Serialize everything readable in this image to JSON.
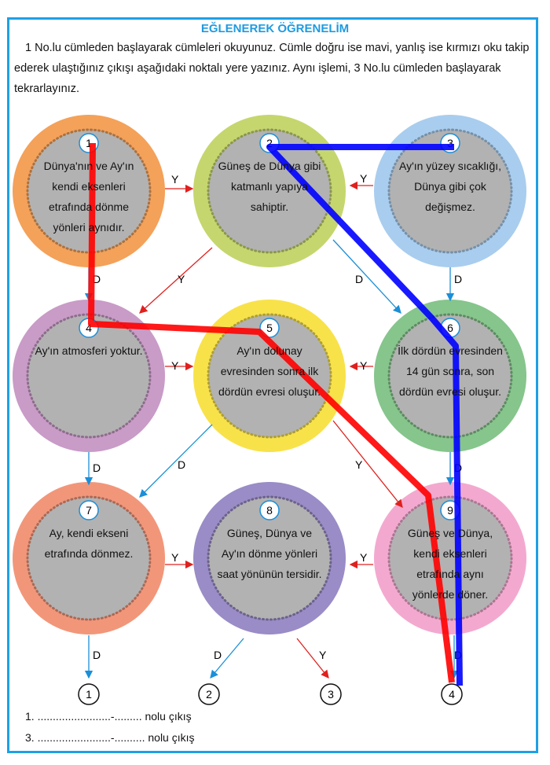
{
  "title": "EĞLENEREK ÖĞRENELİM",
  "instructions": "1 No.lu cümleden başlayarak cümleleri okuyunuz. Cümle doğru ise mavi, yanlış ise kırmızı oku takip ederek ulaştığınız çıkışı aşağıdaki noktalı yere yazınız. Aynı işlemi, 3 No.lu cümleden başlayarak tekrarlayınız.",
  "nodes": [
    {
      "num": "1",
      "text": "Dünya'nın ve Ay'ın kendi eksenleri etrafında dönme yönleri aynıdır.",
      "color": "#f4a15a"
    },
    {
      "num": "2",
      "text": "Güneş de Dünya gibi katmanlı yapıya sahiptir.",
      "color": "#c6d66e"
    },
    {
      "num": "3",
      "text": "Ay'ın yüzey sıcaklığı, Dünya gibi çok değişmez.",
      "color": "#a9cdee"
    },
    {
      "num": "4",
      "text": "Ay'ın atmosferi yoktur.",
      "color": "#c99bc7"
    },
    {
      "num": "5",
      "text": "Ay'ın dolunay evresinden sonra ilk dördün evresi oluşur.",
      "color": "#f8e24a"
    },
    {
      "num": "6",
      "text": "İlk dördün evresinden 14 gün sonra, son dördün evresi oluşur.",
      "color": "#86c58c"
    },
    {
      "num": "7",
      "text": "Ay, kendi ekseni etrafında dönmez.",
      "color": "#f2967a"
    },
    {
      "num": "8",
      "text": "Güneş, Dünya ve Ay'ın dönme yönleri saat yönünün tersidir.",
      "color": "#9a8cc6"
    },
    {
      "num": "9",
      "text": "Güneş ve Dünya, kendi eksenleri etrafında aynı yönlerde döner.",
      "color": "#f3a9cf"
    }
  ],
  "labels": {
    "true": "D",
    "false": "Y"
  },
  "exits": [
    "1",
    "2",
    "3",
    "4"
  ],
  "answers": [
    "1. ........................-......... nolu çıkış",
    "3. ........................-.......... nolu çıkış"
  ],
  "colors": {
    "true_arrow": "#1b8fd8",
    "false_arrow": "#e0201e",
    "pen_red": "#ff0000",
    "pen_blue": "#0000ff",
    "frame": "#1ea0e6"
  }
}
